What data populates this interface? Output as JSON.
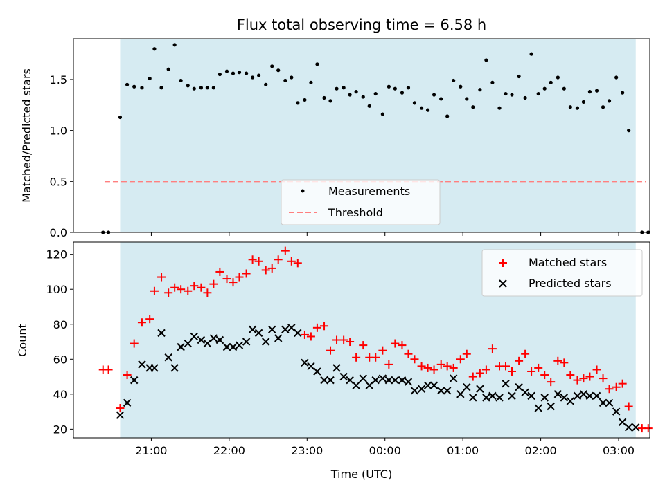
{
  "chart_data": [
    {
      "type": "scatter",
      "title": "Flux total observing time = 6.58 h",
      "ylabel": "Matched/Predicted stars",
      "xlabel": "",
      "ylim": [
        0,
        1.9
      ],
      "yticks": [
        "0.0",
        "0.5",
        "1.0",
        "1.5"
      ],
      "xlim_hours": [
        20.0,
        27.4
      ],
      "shaded_span_hours": [
        20.6,
        27.22
      ],
      "legend": "lower-center",
      "threshold": {
        "name": "Threshold",
        "value": 0.5,
        "x_range": [
          20.4,
          27.35
        ],
        "color": "#ff7f7f"
      },
      "series": [
        {
          "name": "Measurements",
          "color": "#000000",
          "points": [
            [
              20.38,
              0
            ],
            [
              20.45,
              0
            ],
            [
              20.6,
              1.13
            ],
            [
              20.69,
              1.45
            ],
            [
              20.78,
              1.43
            ],
            [
              20.88,
              1.42
            ],
            [
              20.98,
              1.51
            ],
            [
              21.04,
              1.8
            ],
            [
              21.13,
              1.42
            ],
            [
              21.22,
              1.6
            ],
            [
              21.3,
              1.84
            ],
            [
              21.38,
              1.49
            ],
            [
              21.47,
              1.44
            ],
            [
              21.55,
              1.41
            ],
            [
              21.64,
              1.42
            ],
            [
              21.72,
              1.42
            ],
            [
              21.8,
              1.42
            ],
            [
              21.88,
              1.55
            ],
            [
              21.97,
              1.58
            ],
            [
              22.05,
              1.56
            ],
            [
              22.13,
              1.57
            ],
            [
              22.22,
              1.56
            ],
            [
              22.3,
              1.52
            ],
            [
              22.38,
              1.54
            ],
            [
              22.47,
              1.45
            ],
            [
              22.55,
              1.63
            ],
            [
              22.63,
              1.59
            ],
            [
              22.72,
              1.49
            ],
            [
              22.8,
              1.52
            ],
            [
              22.88,
              1.27
            ],
            [
              22.97,
              1.3
            ],
            [
              23.05,
              1.47
            ],
            [
              23.13,
              1.65
            ],
            [
              23.22,
              1.32
            ],
            [
              23.3,
              1.29
            ],
            [
              23.38,
              1.41
            ],
            [
              23.47,
              1.42
            ],
            [
              23.55,
              1.35
            ],
            [
              23.63,
              1.38
            ],
            [
              23.72,
              1.33
            ],
            [
              23.8,
              1.24
            ],
            [
              23.88,
              1.36
            ],
            [
              23.97,
              1.16
            ],
            [
              24.05,
              1.43
            ],
            [
              24.13,
              1.41
            ],
            [
              24.22,
              1.37
            ],
            [
              24.3,
              1.42
            ],
            [
              24.38,
              1.27
            ],
            [
              24.47,
              1.22
            ],
            [
              24.55,
              1.2
            ],
            [
              24.63,
              1.35
            ],
            [
              24.72,
              1.31
            ],
            [
              24.8,
              1.14
            ],
            [
              24.88,
              1.49
            ],
            [
              24.97,
              1.43
            ],
            [
              25.05,
              1.31
            ],
            [
              25.13,
              1.23
            ],
            [
              25.22,
              1.4
            ],
            [
              25.3,
              1.69
            ],
            [
              25.38,
              1.47
            ],
            [
              25.47,
              1.22
            ],
            [
              25.55,
              1.36
            ],
            [
              25.63,
              1.35
            ],
            [
              25.72,
              1.53
            ],
            [
              25.8,
              1.32
            ],
            [
              25.88,
              1.75
            ],
            [
              25.97,
              1.36
            ],
            [
              26.05,
              1.41
            ],
            [
              26.13,
              1.47
            ],
            [
              26.22,
              1.52
            ],
            [
              26.3,
              1.41
            ],
            [
              26.38,
              1.23
            ],
            [
              26.47,
              1.22
            ],
            [
              26.55,
              1.28
            ],
            [
              26.63,
              1.38
            ],
            [
              26.72,
              1.39
            ],
            [
              26.8,
              1.23
            ],
            [
              26.88,
              1.29
            ],
            [
              26.97,
              1.52
            ],
            [
              27.05,
              1.37
            ],
            [
              27.13,
              1.0
            ],
            [
              27.3,
              0
            ],
            [
              27.38,
              0
            ]
          ]
        }
      ]
    },
    {
      "type": "scatter",
      "title": "",
      "xlabel": "Time (UTC)",
      "ylabel": "Count",
      "ylim": [
        15,
        127
      ],
      "yticks": [
        "20",
        "40",
        "60",
        "80",
        "100",
        "120"
      ],
      "xticks": [
        "21:00",
        "22:00",
        "23:00",
        "00:00",
        "01:00",
        "02:00",
        "03:00"
      ],
      "xlim_hours": [
        20.0,
        27.4
      ],
      "shaded_span_hours": [
        20.6,
        27.22
      ],
      "legend": "upper-right",
      "series": [
        {
          "name": "Matched stars",
          "marker": "+",
          "color": "#ff0000",
          "points": [
            [
              20.38,
              54
            ],
            [
              20.45,
              54
            ],
            [
              20.6,
              32
            ],
            [
              20.69,
              51
            ],
            [
              20.78,
              69
            ],
            [
              20.88,
              81
            ],
            [
              20.98,
              83
            ],
            [
              21.04,
              99
            ],
            [
              21.13,
              107
            ],
            [
              21.22,
              98
            ],
            [
              21.3,
              101
            ],
            [
              21.38,
              100
            ],
            [
              21.47,
              99
            ],
            [
              21.55,
              102
            ],
            [
              21.64,
              101
            ],
            [
              21.72,
              98
            ],
            [
              21.8,
              103
            ],
            [
              21.88,
              110
            ],
            [
              21.97,
              106
            ],
            [
              22.05,
              104
            ],
            [
              22.13,
              107
            ],
            [
              22.22,
              109
            ],
            [
              22.3,
              117
            ],
            [
              22.38,
              116
            ],
            [
              22.47,
              111
            ],
            [
              22.55,
              112
            ],
            [
              22.63,
              117
            ],
            [
              22.72,
              122
            ],
            [
              22.8,
              116
            ],
            [
              22.88,
              115
            ],
            [
              22.97,
              74
            ],
            [
              23.05,
              73
            ],
            [
              23.13,
              78
            ],
            [
              23.22,
              79
            ],
            [
              23.3,
              65
            ],
            [
              23.38,
              71
            ],
            [
              23.47,
              71
            ],
            [
              23.55,
              70
            ],
            [
              23.63,
              61
            ],
            [
              23.72,
              68
            ],
            [
              23.8,
              61
            ],
            [
              23.88,
              61
            ],
            [
              23.97,
              65
            ],
            [
              24.05,
              57
            ],
            [
              24.13,
              69
            ],
            [
              24.22,
              68
            ],
            [
              24.3,
              63
            ],
            [
              24.38,
              60
            ],
            [
              24.47,
              56
            ],
            [
              24.55,
              55
            ],
            [
              24.63,
              54
            ],
            [
              24.72,
              57
            ],
            [
              24.8,
              56
            ],
            [
              24.88,
              55
            ],
            [
              24.97,
              60
            ],
            [
              25.05,
              63
            ],
            [
              25.13,
              50
            ],
            [
              25.22,
              52
            ],
            [
              25.3,
              54
            ],
            [
              25.38,
              66
            ],
            [
              25.47,
              56
            ],
            [
              25.55,
              56
            ],
            [
              25.63,
              53
            ],
            [
              25.72,
              59
            ],
            [
              25.8,
              63
            ],
            [
              25.88,
              53
            ],
            [
              25.97,
              55
            ],
            [
              26.05,
              51
            ],
            [
              26.13,
              47
            ],
            [
              26.22,
              59
            ],
            [
              26.3,
              58
            ],
            [
              26.38,
              51
            ],
            [
              26.47,
              48
            ],
            [
              26.55,
              49
            ],
            [
              26.63,
              50
            ],
            [
              26.72,
              54
            ],
            [
              26.8,
              49
            ],
            [
              26.88,
              43
            ],
            [
              26.97,
              44
            ],
            [
              27.05,
              46
            ],
            [
              27.13,
              33
            ],
            [
              27.3,
              20.5
            ],
            [
              27.38,
              20.5
            ]
          ]
        },
        {
          "name": "Predicted stars",
          "marker": "x",
          "color": "#000000",
          "points": [
            [
              20.6,
              28
            ],
            [
              20.69,
              35
            ],
            [
              20.78,
              48
            ],
            [
              20.88,
              57
            ],
            [
              20.98,
              55
            ],
            [
              21.04,
              55
            ],
            [
              21.13,
              75
            ],
            [
              21.22,
              61
            ],
            [
              21.3,
              55
            ],
            [
              21.38,
              67
            ],
            [
              21.47,
              69
            ],
            [
              21.55,
              73
            ],
            [
              21.64,
              71
            ],
            [
              21.72,
              69
            ],
            [
              21.8,
              72
            ],
            [
              21.88,
              71
            ],
            [
              21.97,
              67
            ],
            [
              22.05,
              67
            ],
            [
              22.13,
              68
            ],
            [
              22.22,
              70
            ],
            [
              22.3,
              77
            ],
            [
              22.38,
              75
            ],
            [
              22.47,
              70
            ],
            [
              22.55,
              77
            ],
            [
              22.63,
              72
            ],
            [
              22.72,
              77
            ],
            [
              22.8,
              78
            ],
            [
              22.88,
              75
            ],
            [
              22.97,
              58
            ],
            [
              23.05,
              56
            ],
            [
              23.13,
              53
            ],
            [
              23.22,
              48
            ],
            [
              23.3,
              48
            ],
            [
              23.38,
              55
            ],
            [
              23.47,
              50
            ],
            [
              23.55,
              48
            ],
            [
              23.63,
              45
            ],
            [
              23.72,
              49
            ],
            [
              23.8,
              45
            ],
            [
              23.88,
              48
            ],
            [
              23.97,
              49
            ],
            [
              24.05,
              48
            ],
            [
              24.13,
              48
            ],
            [
              24.22,
              48
            ],
            [
              24.3,
              47
            ],
            [
              24.38,
              42
            ],
            [
              24.47,
              43
            ],
            [
              24.55,
              45
            ],
            [
              24.63,
              45
            ],
            [
              24.72,
              42
            ],
            [
              24.8,
              42
            ],
            [
              24.88,
              49
            ],
            [
              24.97,
              40
            ],
            [
              25.05,
              44
            ],
            [
              25.13,
              38
            ],
            [
              25.22,
              43
            ],
            [
              25.3,
              38
            ],
            [
              25.38,
              39
            ],
            [
              25.47,
              38
            ],
            [
              25.55,
              46
            ],
            [
              25.63,
              39
            ],
            [
              25.72,
              44
            ],
            [
              25.8,
              41
            ],
            [
              25.88,
              39
            ],
            [
              25.97,
              32
            ],
            [
              26.05,
              38
            ],
            [
              26.13,
              33
            ],
            [
              26.22,
              40
            ],
            [
              26.3,
              38
            ],
            [
              26.38,
              36
            ],
            [
              26.47,
              39
            ],
            [
              26.55,
              40
            ],
            [
              26.63,
              39
            ],
            [
              26.72,
              39
            ],
            [
              26.8,
              35
            ],
            [
              26.88,
              35
            ],
            [
              26.97,
              30
            ],
            [
              27.05,
              24
            ],
            [
              27.13,
              21
            ],
            [
              27.22,
              21
            ]
          ]
        }
      ]
    }
  ]
}
